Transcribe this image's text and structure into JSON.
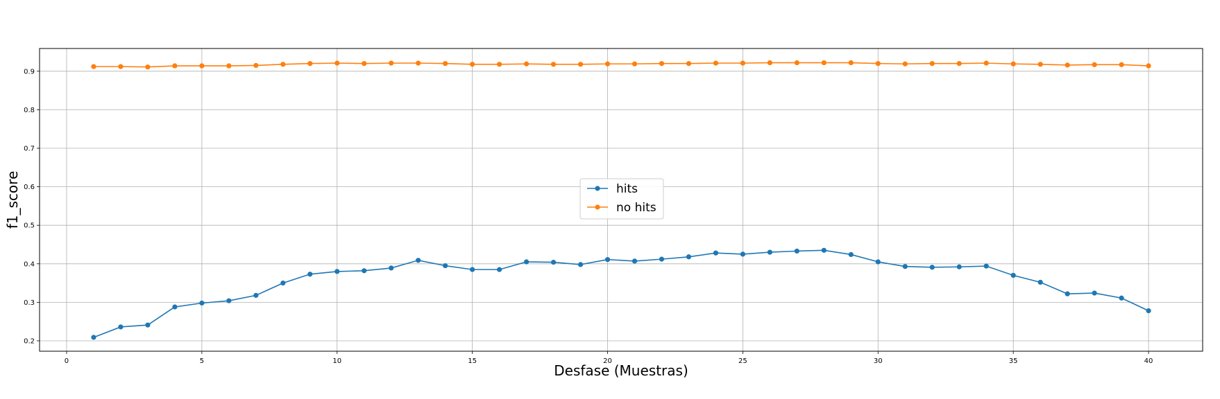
{
  "chart_data": {
    "type": "line",
    "title": "",
    "xlabel": "Desfase (Muestras)",
    "ylabel": "f1_score",
    "xlim": [
      -1,
      42
    ],
    "ylim": [
      0.173,
      0.959
    ],
    "xticks": [
      0,
      5,
      10,
      15,
      20,
      25,
      30,
      35,
      40
    ],
    "yticks": [
      0.2,
      0.3,
      0.4,
      0.5,
      0.6,
      0.7,
      0.8,
      0.9
    ],
    "grid": true,
    "legend_position": "center",
    "x": [
      1,
      2,
      3,
      4,
      5,
      6,
      7,
      8,
      9,
      10,
      11,
      12,
      13,
      14,
      15,
      16,
      17,
      18,
      19,
      20,
      21,
      22,
      23,
      24,
      25,
      26,
      27,
      28,
      29,
      30,
      31,
      32,
      33,
      34,
      35,
      36,
      37,
      38,
      39,
      40
    ],
    "series": [
      {
        "name": "hits",
        "color": "#1f77b4",
        "marker": "circle",
        "values": [
          0.209,
          0.236,
          0.241,
          0.288,
          0.298,
          0.304,
          0.318,
          0.35,
          0.373,
          0.38,
          0.382,
          0.389,
          0.409,
          0.395,
          0.385,
          0.385,
          0.405,
          0.404,
          0.398,
          0.411,
          0.407,
          0.412,
          0.418,
          0.428,
          0.425,
          0.43,
          0.433,
          0.435,
          0.424,
          0.405,
          0.393,
          0.391,
          0.392,
          0.394,
          0.37,
          0.352,
          0.322,
          0.324,
          0.311,
          0.278
        ]
      },
      {
        "name": "no hits",
        "color": "#ff7f0e",
        "marker": "circle",
        "values": [
          0.912,
          0.912,
          0.911,
          0.914,
          0.914,
          0.914,
          0.915,
          0.918,
          0.92,
          0.921,
          0.92,
          0.921,
          0.921,
          0.92,
          0.918,
          0.918,
          0.919,
          0.918,
          0.918,
          0.919,
          0.919,
          0.92,
          0.92,
          0.921,
          0.921,
          0.922,
          0.922,
          0.922,
          0.922,
          0.92,
          0.919,
          0.92,
          0.92,
          0.921,
          0.919,
          0.918,
          0.916,
          0.917,
          0.917,
          0.914
        ]
      }
    ]
  }
}
